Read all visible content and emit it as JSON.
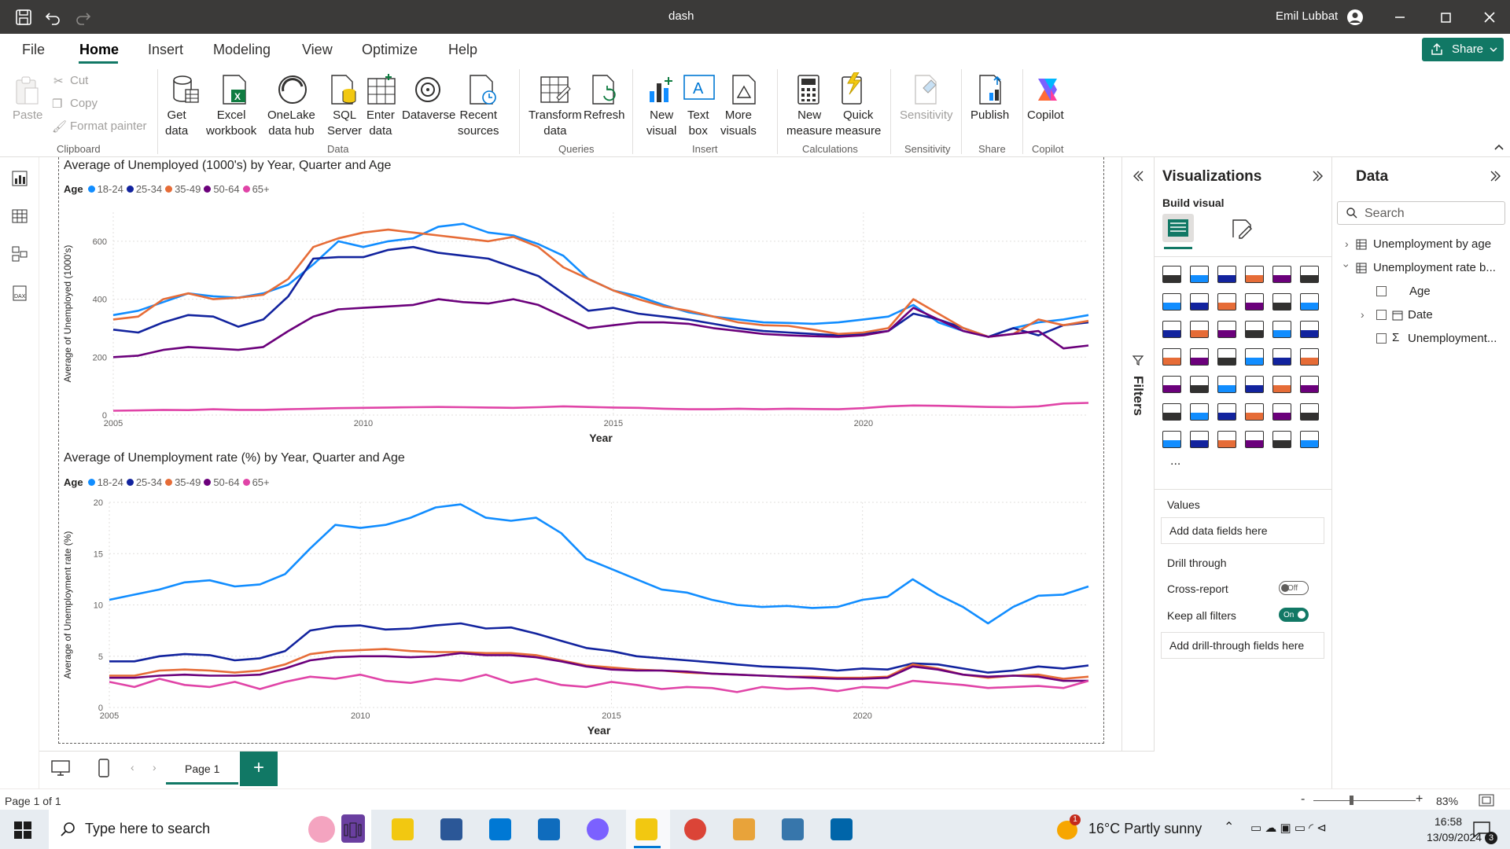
{
  "window": {
    "title": "dash",
    "user": "Emil Lubbat"
  },
  "menu": [
    "File",
    "Home",
    "Insert",
    "Modeling",
    "View",
    "Optimize",
    "Help"
  ],
  "share_label": "Share",
  "ribbon": {
    "clipboard": {
      "paste": "Paste",
      "cut": "Cut",
      "copy": "Copy",
      "format_painter": "Format painter",
      "group": "Clipboard"
    },
    "data": {
      "get_data": "Get\ndata",
      "excel": "Excel\nworkbook",
      "onelake": "OneLake\ndata hub",
      "sql": "SQL\nServer",
      "enter": "Enter\ndata",
      "dataverse": "Dataverse",
      "recent": "Recent\nsources",
      "group": "Data"
    },
    "queries": {
      "transform": "Transform\ndata",
      "refresh": "Refresh",
      "group": "Queries"
    },
    "insert": {
      "new_visual": "New\nvisual",
      "text_box": "Text\nbox",
      "more_visuals": "More\nvisuals",
      "group": "Insert"
    },
    "calculations": {
      "new_measure": "New\nmeasure",
      "quick_measure": "Quick\nmeasure",
      "group": "Calculations"
    },
    "sensitivity": {
      "label": "Sensitivity",
      "group": "Sensitivity"
    },
    "share": {
      "publish": "Publish",
      "group": "Share"
    },
    "copilot": {
      "label": "Copilot",
      "group": "Copilot"
    }
  },
  "chart_data": [
    {
      "type": "line",
      "title": "Average of Unemployed (1000's) by Year, Quarter and Age",
      "legend_title": "Age",
      "legend_position": "top-left",
      "xlabel": "Year",
      "ylabel": "Average of Unemployed (1000's)",
      "x_ticks": [
        "2005",
        "2010",
        "2015",
        "2020"
      ],
      "y_ticks": [
        "0",
        "200",
        "400",
        "600"
      ],
      "xlim": [
        2005,
        2024.5
      ],
      "ylim": [
        0,
        700
      ],
      "grid": true,
      "x": [
        2005,
        2005.5,
        2006,
        2006.5,
        2007,
        2007.5,
        2008,
        2008.5,
        2009,
        2009.5,
        2010,
        2010.5,
        2011,
        2011.5,
        2012,
        2012.5,
        2013,
        2013.5,
        2014,
        2014.5,
        2015,
        2015.5,
        2016,
        2016.5,
        2017,
        2017.5,
        2018,
        2018.5,
        2019,
        2019.5,
        2020,
        2020.5,
        2021,
        2021.5,
        2022,
        2022.5,
        2023,
        2023.5,
        2024,
        2024.5
      ],
      "series": [
        {
          "name": "18-24",
          "color": "#118dff",
          "values": [
            345,
            360,
            390,
            420,
            410,
            405,
            420,
            450,
            520,
            600,
            580,
            600,
            610,
            650,
            660,
            630,
            620,
            590,
            550,
            470,
            430,
            410,
            380,
            355,
            340,
            330,
            320,
            318,
            315,
            320,
            330,
            340,
            380,
            320,
            290,
            270,
            300,
            320,
            330,
            345
          ]
        },
        {
          "name": "25-34",
          "color": "#12239e",
          "values": [
            295,
            285,
            320,
            345,
            340,
            305,
            330,
            410,
            540,
            545,
            545,
            570,
            580,
            560,
            550,
            540,
            510,
            480,
            420,
            360,
            370,
            350,
            340,
            330,
            315,
            300,
            290,
            285,
            280,
            275,
            280,
            290,
            350,
            330,
            300,
            270,
            300,
            275,
            310,
            320
          ]
        },
        {
          "name": "35-49",
          "color": "#e66c37",
          "values": [
            330,
            340,
            400,
            420,
            400,
            405,
            415,
            470,
            580,
            610,
            630,
            640,
            630,
            620,
            610,
            600,
            615,
            580,
            510,
            470,
            430,
            400,
            375,
            360,
            340,
            320,
            310,
            308,
            295,
            280,
            285,
            300,
            400,
            350,
            300,
            270,
            280,
            330,
            310,
            325
          ]
        },
        {
          "name": "50-64",
          "color": "#6b007b",
          "values": [
            200,
            205,
            225,
            235,
            230,
            225,
            235,
            290,
            340,
            365,
            370,
            375,
            380,
            400,
            390,
            385,
            400,
            380,
            340,
            300,
            310,
            320,
            320,
            315,
            300,
            290,
            280,
            275,
            272,
            270,
            275,
            290,
            370,
            330,
            290,
            270,
            280,
            290,
            230,
            240
          ]
        },
        {
          "name": "65+",
          "color": "#e044a7",
          "values": [
            15,
            16,
            18,
            17,
            20,
            18,
            18,
            20,
            22,
            24,
            25,
            26,
            27,
            28,
            27,
            26,
            25,
            27,
            30,
            28,
            26,
            25,
            22,
            20,
            20,
            22,
            20,
            22,
            21,
            20,
            24,
            30,
            33,
            32,
            30,
            28,
            27,
            30,
            40,
            42
          ]
        }
      ]
    },
    {
      "type": "line",
      "title": "Average of Unemployment rate (%) by Year, Quarter and Age",
      "legend_title": "Age",
      "legend_position": "top-left",
      "xlabel": "Year",
      "ylabel": "Average of Unemployment rate (%)",
      "x_ticks": [
        "2005",
        "2010",
        "2015",
        "2020"
      ],
      "y_ticks": [
        "0",
        "5",
        "10",
        "15",
        "20"
      ],
      "xlim": [
        2005,
        2024.5
      ],
      "ylim": [
        0,
        20
      ],
      "grid": true,
      "x": [
        2005,
        2005.5,
        2006,
        2006.5,
        2007,
        2007.5,
        2008,
        2008.5,
        2009,
        2009.5,
        2010,
        2010.5,
        2011,
        2011.5,
        2012,
        2012.5,
        2013,
        2013.5,
        2014,
        2014.5,
        2015,
        2015.5,
        2016,
        2016.5,
        2017,
        2017.5,
        2018,
        2018.5,
        2019,
        2019.5,
        2020,
        2020.5,
        2021,
        2021.5,
        2022,
        2022.5,
        2023,
        2023.5,
        2024,
        2024.5
      ],
      "series": [
        {
          "name": "18-24",
          "color": "#118dff",
          "values": [
            10.5,
            11,
            11.5,
            12.2,
            12.4,
            11.8,
            12,
            13,
            15.5,
            17.8,
            17.5,
            17.8,
            18.5,
            19.5,
            19.8,
            18.5,
            18.2,
            18.5,
            17,
            14.5,
            13.5,
            12.5,
            11.5,
            11.2,
            10.5,
            10,
            9.8,
            9.9,
            9.7,
            9.8,
            10.5,
            10.8,
            12.5,
            11,
            9.8,
            8.2,
            9.8,
            10.9,
            11,
            11.8
          ]
        },
        {
          "name": "25-34",
          "color": "#12239e",
          "values": [
            4.5,
            4.5,
            5,
            5.2,
            5.1,
            4.6,
            4.8,
            5.5,
            7.5,
            7.9,
            8,
            7.6,
            7.7,
            8,
            8.2,
            7.7,
            7.8,
            7.2,
            6.5,
            5.8,
            5.5,
            5,
            4.8,
            4.6,
            4.4,
            4.2,
            4,
            3.9,
            3.8,
            3.6,
            3.8,
            3.7,
            4.3,
            4.2,
            3.8,
            3.4,
            3.6,
            4,
            3.8,
            4.1
          ]
        },
        {
          "name": "35-49",
          "color": "#e66c37",
          "values": [
            3.1,
            3.1,
            3.6,
            3.7,
            3.6,
            3.4,
            3.6,
            4.2,
            5.2,
            5.5,
            5.6,
            5.7,
            5.5,
            5.4,
            5.4,
            5.3,
            5.3,
            5.1,
            4.6,
            4.1,
            3.9,
            3.7,
            3.6,
            3.4,
            3.3,
            3.2,
            3.1,
            3,
            3,
            2.9,
            2.9,
            3,
            4.2,
            3.8,
            3.2,
            2.9,
            3.1,
            3.2,
            2.8,
            3
          ]
        },
        {
          "name": "50-64",
          "color": "#6b007b",
          "values": [
            2.9,
            2.9,
            3.1,
            3.2,
            3.1,
            3.1,
            3.2,
            3.8,
            4.6,
            4.9,
            5,
            5,
            4.9,
            5,
            5.3,
            5.1,
            5.1,
            4.9,
            4.5,
            4,
            3.7,
            3.6,
            3.6,
            3.5,
            3.3,
            3.2,
            3.1,
            3,
            2.9,
            2.8,
            2.8,
            2.9,
            4,
            3.7,
            3.2,
            3,
            3.1,
            3,
            2.6,
            2.6
          ]
        },
        {
          "name": "65+",
          "color": "#e044a7",
          "values": [
            2.5,
            2,
            2.8,
            2.2,
            2,
            2.5,
            1.8,
            2.5,
            3,
            2.8,
            3.2,
            2.6,
            2.4,
            2.8,
            2.6,
            3.2,
            2.4,
            2.8,
            2.2,
            2,
            2.5,
            2.2,
            1.8,
            2,
            1.9,
            1.5,
            2,
            1.8,
            1.9,
            1.6,
            2,
            1.9,
            2.6,
            2.4,
            2.2,
            1.9,
            2,
            2.1,
            1.9,
            2.6
          ]
        }
      ]
    }
  ],
  "filters_label": "Filters",
  "visualizations": {
    "title": "Visualizations",
    "build_visual": "Build visual",
    "values": "Values",
    "add_data": "Add data fields here",
    "drill_through": "Drill through",
    "cross_report": "Cross-report",
    "cross_report_state": "Off",
    "keep_filters": "Keep all filters",
    "keep_filters_state": "On",
    "add_drill": "Add drill-through fields here",
    "more": "..."
  },
  "data_pane": {
    "title": "Data",
    "search_placeholder": "Search",
    "tables": [
      "Unemployment by age",
      "Unemployment rate b..."
    ],
    "fields": [
      "Age",
      "Date",
      "Unemployment..."
    ]
  },
  "pages": {
    "current": "Page 1",
    "add": "+"
  },
  "status": {
    "page_info": "Page 1 of 1",
    "zoom": "83%",
    "zoom_minus": "-",
    "zoom_plus": "+"
  },
  "taskbar": {
    "search_placeholder": "Type here to search",
    "weather": "16°C  Partly sunny",
    "time": "16:58",
    "date": "13/09/2024",
    "notifications": "3",
    "weather_badge": "1"
  }
}
